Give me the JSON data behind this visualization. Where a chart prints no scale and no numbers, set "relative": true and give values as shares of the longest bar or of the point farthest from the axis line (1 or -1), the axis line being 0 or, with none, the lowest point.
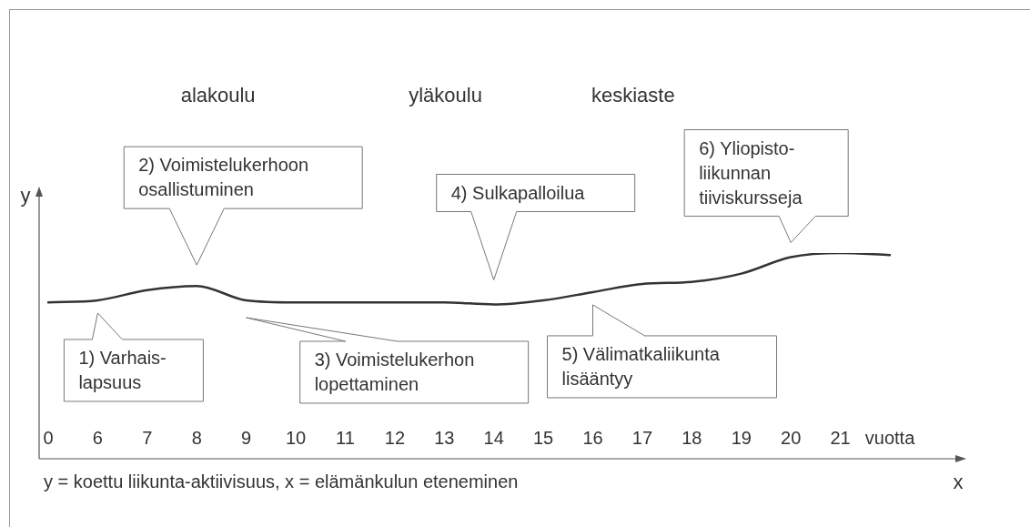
{
  "chart_data": {
    "type": "line",
    "relative": true,
    "xlabel": "x",
    "ylabel": "y",
    "categories": [
      "0",
      "6",
      "7",
      "8",
      "9",
      "10",
      "11",
      "12",
      "13",
      "14",
      "15",
      "16",
      "17",
      "18",
      "19",
      "20",
      "21",
      "vuotta"
    ],
    "series": [
      {
        "color": "#333333",
        "values": [
          0.76,
          0.77,
          0.82,
          0.84,
          0.77,
          0.76,
          0.76,
          0.76,
          0.76,
          0.75,
          0.77,
          0.81,
          0.85,
          0.86,
          0.9,
          0.98,
          1,
          0.99
        ]
      }
    ],
    "annotations": [
      "alakoulu",
      "yläkoulu",
      "keskiaste",
      "1) Varhais-\nlapsuus",
      "2) Voimistelukerhoon\nosallistuminen",
      "3) Voimistelukerhon\nlopettaminen",
      "4) Sulkapalloilua",
      "5) Välimatkaliikunta\nlisääntyy",
      "6) Yliopisto-\nliikunnan\ntiiviskursseja",
      "y = koettu liikunta-aktiivisuus, x = elämänkulun eteneminen"
    ]
  }
}
